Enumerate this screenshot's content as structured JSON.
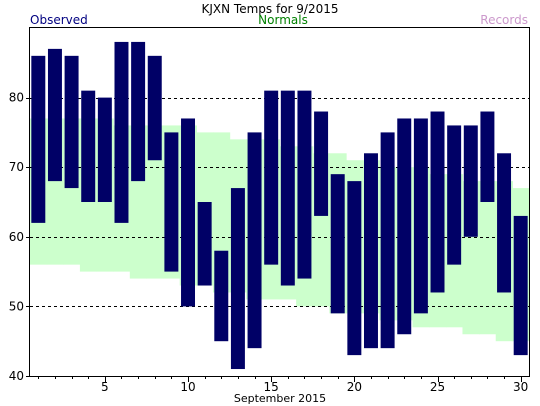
{
  "chart_data": {
    "type": "bar",
    "title": "KJXN Temps for 9/2015",
    "legend": {
      "observed": "Observed",
      "normals": "Normals",
      "records": "Records"
    },
    "xlabel": "September 2015",
    "x_ticks": [
      5,
      10,
      15,
      20,
      25,
      30
    ],
    "y_ticks": [
      40,
      50,
      60,
      70,
      80
    ],
    "ylim": [
      40,
      90
    ],
    "xlim": [
      0.5,
      30.5
    ],
    "grid": {
      "y_dashed": [
        50,
        60,
        70,
        80
      ]
    },
    "colors": {
      "observed": "#000066",
      "normals": "#ccffcc",
      "observed_text": "#000080",
      "normals_text": "#008000",
      "records_text": "#cc99cc"
    },
    "days": [
      1,
      2,
      3,
      4,
      5,
      6,
      7,
      8,
      9,
      10,
      11,
      12,
      13,
      14,
      15,
      16,
      17,
      18,
      19,
      20,
      21,
      22,
      23,
      24,
      25,
      26,
      27,
      28,
      29,
      30
    ],
    "observed_high": [
      86,
      87,
      86,
      81,
      80,
      88,
      88,
      86,
      75,
      77,
      65,
      58,
      67,
      75,
      81,
      81,
      81,
      78,
      69,
      68,
      72,
      75,
      77,
      77,
      78,
      76,
      76,
      78,
      72,
      63
    ],
    "observed_low": [
      62,
      68,
      67,
      65,
      65,
      62,
      68,
      71,
      55,
      50,
      53,
      45,
      41,
      44,
      56,
      53,
      54,
      63,
      49,
      43,
      44,
      44,
      46,
      49,
      52,
      56,
      60,
      65,
      52,
      43
    ],
    "normal_high": [
      77,
      77,
      77,
      77,
      77,
      76,
      76,
      76,
      76,
      76,
      75,
      75,
      74,
      74,
      74,
      73,
      73,
      72,
      72,
      71,
      71,
      70,
      70,
      70,
      69,
      69,
      68,
      68,
      68,
      67
    ],
    "normal_low": [
      56,
      56,
      56,
      55,
      55,
      55,
      54,
      54,
      54,
      53,
      53,
      52,
      52,
      51,
      51,
      51,
      50,
      50,
      49,
      49,
      49,
      48,
      48,
      47,
      47,
      47,
      46,
      46,
      45,
      45
    ]
  }
}
